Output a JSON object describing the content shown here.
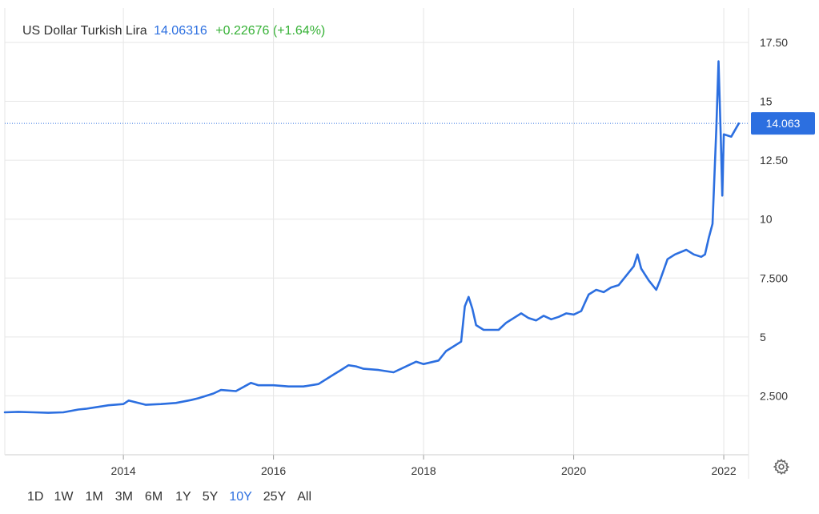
{
  "header": {
    "name": "US Dollar Turkish Lira",
    "price": "14.06316",
    "change": "+0.22676 (+1.64%)"
  },
  "colors": {
    "line": "#2c6fe0",
    "grid": "#e6e6e6",
    "up": "#35b135",
    "text": "#333333"
  },
  "ranges": [
    "1D",
    "1W",
    "1M",
    "3M",
    "6M",
    "1Y",
    "5Y",
    "10Y",
    "25Y",
    "All"
  ],
  "active_range": "10Y",
  "settings_icon": "gear-icon",
  "chart_data": {
    "type": "line",
    "title": "",
    "xlabel": "",
    "ylabel": "",
    "xlim": [
      2012.42,
      2022.33
    ],
    "ylim": [
      0,
      19.3
    ],
    "y_ticks": [
      2.5,
      5,
      7.5,
      10,
      12.5,
      15,
      17.5
    ],
    "y_tick_labels": [
      "2.500",
      "5",
      "7.500",
      "10",
      "12.50",
      "15",
      "17.50"
    ],
    "x_ticks": [
      2014,
      2016,
      2018,
      2020,
      2022
    ],
    "x_tick_labels": [
      "2014",
      "2016",
      "2018",
      "2020",
      "2022"
    ],
    "current_value_label": "14.063",
    "current_value": 14.063,
    "grid": true,
    "series": [
      {
        "x": [
          2012.42,
          2012.6,
          2012.8,
          2013.0,
          2013.2,
          2013.4,
          2013.5,
          2013.7,
          2013.8,
          2014.0,
          2014.07,
          2014.3,
          2014.5,
          2014.7,
          2014.9,
          2015.0,
          2015.2,
          2015.3,
          2015.5,
          2015.7,
          2015.8,
          2016.0,
          2016.2,
          2016.4,
          2016.6,
          2016.8,
          2016.9,
          2017.0,
          2017.1,
          2017.2,
          2017.4,
          2017.6,
          2017.8,
          2017.9,
          2018.0,
          2018.2,
          2018.3,
          2018.4,
          2018.5,
          2018.55,
          2018.6,
          2018.65,
          2018.7,
          2018.8,
          2018.9,
          2019.0,
          2019.1,
          2019.2,
          2019.3,
          2019.4,
          2019.5,
          2019.6,
          2019.7,
          2019.8,
          2019.9,
          2020.0,
          2020.1,
          2020.15,
          2020.2,
          2020.3,
          2020.4,
          2020.5,
          2020.6,
          2020.7,
          2020.8,
          2020.85,
          2020.9,
          2021.0,
          2021.1,
          2021.15,
          2021.25,
          2021.35,
          2021.5,
          2021.6,
          2021.7,
          2021.75,
          2021.8,
          2021.85,
          2021.9,
          2021.93,
          2021.96,
          2021.98,
          2022.0,
          2022.1,
          2022.2
        ],
        "y": [
          1.8,
          1.82,
          1.8,
          1.78,
          1.8,
          1.92,
          1.95,
          2.05,
          2.1,
          2.15,
          2.3,
          2.12,
          2.15,
          2.2,
          2.32,
          2.4,
          2.6,
          2.75,
          2.7,
          3.05,
          2.95,
          2.95,
          2.9,
          2.9,
          3.0,
          3.4,
          3.6,
          3.8,
          3.75,
          3.65,
          3.6,
          3.5,
          3.8,
          3.95,
          3.85,
          4.0,
          4.4,
          4.6,
          4.8,
          6.3,
          6.7,
          6.2,
          5.5,
          5.3,
          5.3,
          5.3,
          5.6,
          5.8,
          6.0,
          5.8,
          5.7,
          5.9,
          5.75,
          5.85,
          6.0,
          5.95,
          6.1,
          6.45,
          6.8,
          7.0,
          6.9,
          7.1,
          7.2,
          7.6,
          8.0,
          8.5,
          7.9,
          7.4,
          7.0,
          7.4,
          8.3,
          8.5,
          8.7,
          8.5,
          8.4,
          8.5,
          9.2,
          9.8,
          13.8,
          16.7,
          13.5,
          11.0,
          13.6,
          13.5,
          14.06
        ]
      }
    ]
  }
}
